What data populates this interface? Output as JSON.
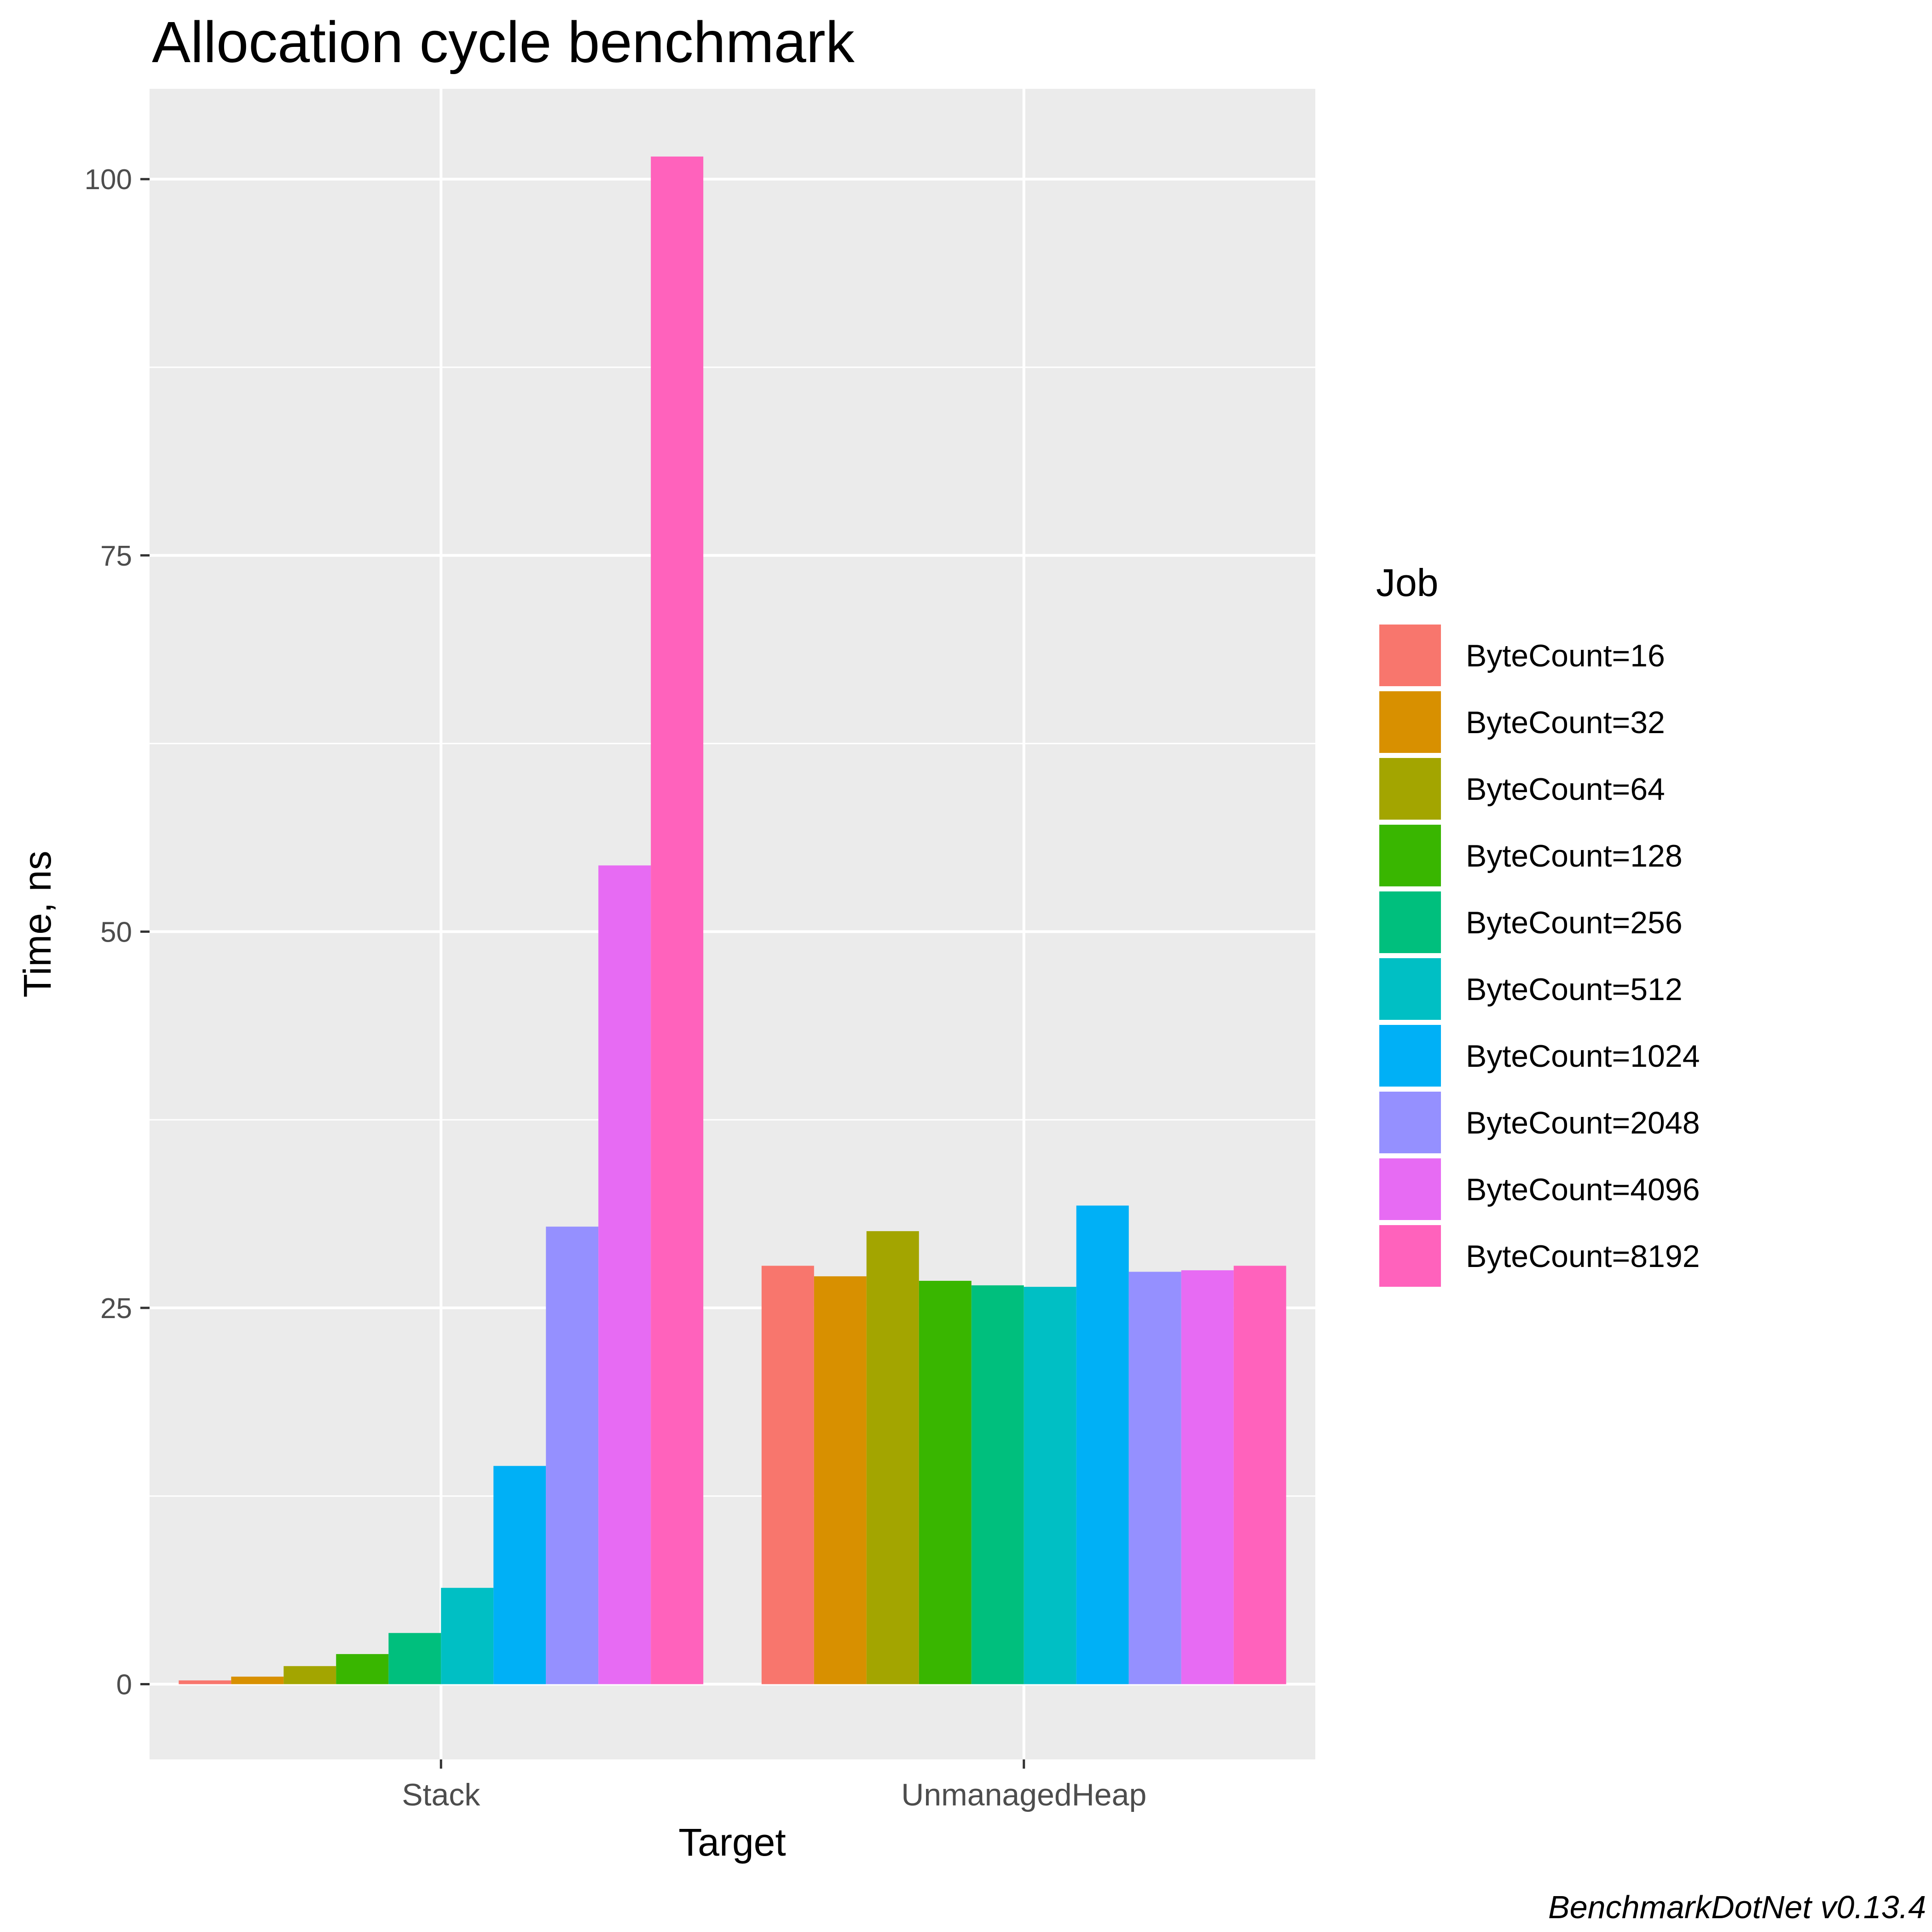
{
  "chart_data": {
    "type": "bar",
    "title": "Allocation cycle benchmark",
    "xlabel": "Target",
    "ylabel": "Time, ns",
    "categories": [
      "Stack",
      "UnmanagedHeap"
    ],
    "ylim": [
      -5,
      106
    ],
    "yticks": [
      0,
      25,
      50,
      75,
      100
    ],
    "grid": true,
    "legend": {
      "title": "Job",
      "position": "right"
    },
    "series": [
      {
        "name": "ByteCount=16",
        "color": "#F8766D",
        "values": [
          0.25,
          27.8
        ]
      },
      {
        "name": "ByteCount=32",
        "color": "#D89000",
        "values": [
          0.5,
          27.1
        ]
      },
      {
        "name": "ByteCount=64",
        "color": "#A3A500",
        "values": [
          1.2,
          30.1
        ]
      },
      {
        "name": "ByteCount=128",
        "color": "#39B600",
        "values": [
          2.0,
          26.8
        ]
      },
      {
        "name": "ByteCount=256",
        "color": "#00BF7D",
        "values": [
          3.4,
          26.5
        ]
      },
      {
        "name": "ByteCount=512",
        "color": "#00BFC4",
        "values": [
          6.4,
          26.4
        ]
      },
      {
        "name": "ByteCount=1024",
        "color": "#00B0F6",
        "values": [
          14.5,
          31.8
        ]
      },
      {
        "name": "ByteCount=2048",
        "color": "#9590FF",
        "values": [
          30.4,
          27.4
        ]
      },
      {
        "name": "ByteCount=4096",
        "color": "#E76BF3",
        "values": [
          54.4,
          27.5
        ]
      },
      {
        "name": "ByteCount=8192",
        "color": "#FF62BC",
        "values": [
          101.5,
          27.8
        ]
      }
    ],
    "caption": "BenchmarkDotNet v0.13.4"
  }
}
